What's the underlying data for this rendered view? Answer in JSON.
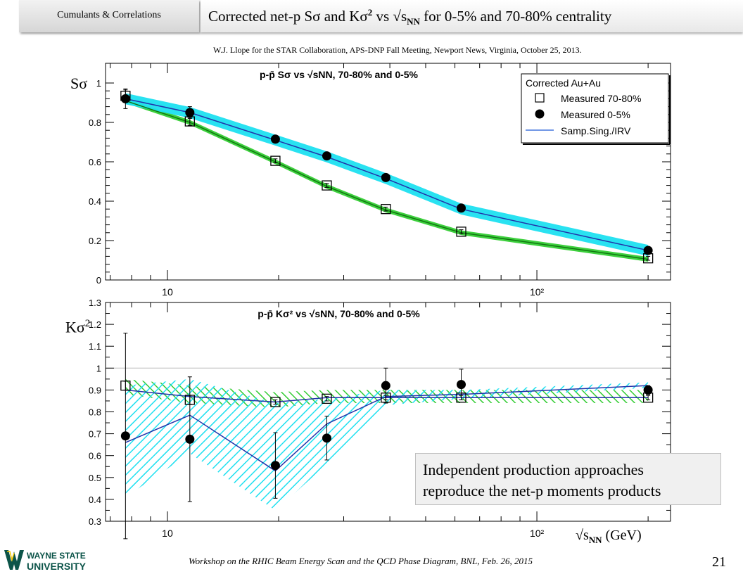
{
  "header": {
    "tab_label": "Cumulants & Correlations",
    "title_main": "Corrected net-p Sσ and Kσ",
    "title_sup": "2",
    "title_mid": " vs √s",
    "title_sub": "NN",
    "title_end": " for 0-5% and 70-80% centrality",
    "credit": "W.J. Llope for the STAR Collaboration, APS-DNP Fall Meeting, Newport News, Virginia, October 25, 2013."
  },
  "labels": {
    "ylabel_top": "Sσ",
    "ylabel_bottom": "Kσ",
    "ylabel_bottom_sup": "2",
    "xlabel_pre": "√s",
    "xlabel_sub": "NN",
    "xlabel_post": " (GeV)"
  },
  "note": {
    "line1": "Independent production approaches",
    "line2": "reproduce the net-p moments products"
  },
  "footer": {
    "text": "Workshop on the RHIC Beam Energy Scan and the QCD Phase Diagram, BNL, Feb. 26, 2015",
    "page": "21"
  },
  "logo": {
    "line1": "WAYNE STATE",
    "line2": "UNIVERSITY"
  },
  "colors": {
    "cyan_band": "#1ee0f0",
    "green_band": "#33cc33",
    "line_blue": "#2233aa",
    "line_green": "#117711"
  },
  "chart_data": [
    {
      "type": "scatter",
      "title": "p-p̄ Sσ vs √sNN, 70-80% and 0-5%",
      "xscale": "log",
      "xlim": [
        6.8,
        230
      ],
      "ylim": [
        0,
        1.1
      ],
      "yticks": [
        0,
        0.2,
        0.4,
        0.6,
        0.8,
        1
      ],
      "ytick_labels": [
        "0",
        "0.2",
        "0.4",
        "0.6",
        "0.8",
        "1"
      ],
      "xtick_labels": [
        "10",
        "10²"
      ],
      "legend": {
        "position": "top-right",
        "title": "Corrected Au+Au",
        "entries": [
          "Measured 70-80%",
          "Measured 0-5%",
          "Samp.Sing./IRV"
        ]
      },
      "x": [
        7.7,
        11.5,
        19.6,
        27,
        39,
        62.4,
        200
      ],
      "series": [
        {
          "name": "Measured 70-80%",
          "marker": "open-square",
          "values": [
            0.935,
            0.805,
            0.605,
            0.48,
            0.36,
            0.245,
            0.11
          ],
          "errors": [
            0.03,
            0.02,
            0.01,
            0.01,
            0.01,
            0.01,
            0.01
          ]
        },
        {
          "name": "Measured 0-5%",
          "marker": "filled-circle",
          "values": [
            0.92,
            0.85,
            0.715,
            0.63,
            0.52,
            0.365,
            0.15
          ],
          "errors": [
            0.05,
            0.03,
            0.01,
            0.01,
            0.01,
            0.01,
            0.01
          ]
        },
        {
          "name": "Samp.Sing./IRV",
          "marker": "line",
          "band": "green",
          "values": [
            0.91,
            0.8,
            0.6,
            0.475,
            0.355,
            0.24,
            0.105
          ],
          "band_halfwidth": 0.012
        },
        {
          "name": "Samp.Sing./IRV",
          "marker": "line",
          "band": "cyan",
          "values": [
            0.92,
            0.85,
            0.71,
            0.625,
            0.515,
            0.36,
            0.15
          ],
          "band_halfwidth": 0.028
        }
      ]
    },
    {
      "type": "scatter",
      "title": "p-p̄ Kσ² vs √sNN, 70-80% and 0-5%",
      "xscale": "log",
      "xlim": [
        6.8,
        230
      ],
      "ylim": [
        0.3,
        1.3
      ],
      "yticks": [
        0.3,
        0.4,
        0.5,
        0.6,
        0.7,
        0.8,
        0.9,
        1,
        1.1,
        1.2,
        1.3
      ],
      "ytick_labels": [
        "0.3",
        "0.4",
        "0.5",
        "0.6",
        "0.7",
        "0.8",
        "0.9",
        "1",
        "1.1",
        "1.2",
        "1.3"
      ],
      "xtick_labels": [
        "10",
        "10²"
      ],
      "reference_line": 1.0,
      "x": [
        7.7,
        11.5,
        19.6,
        27,
        39,
        62.4,
        200
      ],
      "series": [
        {
          "name": "Measured 70-80%",
          "marker": "open-square",
          "values": [
            0.92,
            0.855,
            0.845,
            0.86,
            0.865,
            0.865,
            0.865
          ],
          "errors": [
            0.02,
            0.02,
            0.01,
            0.01,
            0.01,
            0.01,
            0.01
          ]
        },
        {
          "name": "Measured 0-5%",
          "marker": "filled-circle",
          "values": [
            0.69,
            0.675,
            0.555,
            0.68,
            0.92,
            0.925,
            0.9
          ],
          "errors": [
            0.47,
            0.285,
            0.15,
            0.1,
            0.08,
            0.07,
            0.02
          ]
        },
        {
          "name": "Samp.Sing./IRV",
          "marker": "line",
          "band": "green",
          "values": [
            0.9,
            0.87,
            0.845,
            0.865,
            0.865,
            0.865,
            0.865
          ],
          "band_lo": [
            0.88,
            0.84,
            0.82,
            0.84,
            0.84,
            0.84,
            0.84
          ],
          "band_hi": [
            0.95,
            0.92,
            0.89,
            0.9,
            0.9,
            0.9,
            0.9
          ]
        },
        {
          "name": "Samp.Sing./IRV",
          "marker": "line",
          "band": "cyan",
          "values": [
            0.66,
            0.785,
            0.53,
            0.745,
            0.87,
            0.88,
            0.92
          ],
          "band_lo": [
            0.41,
            0.61,
            0.35,
            0.56,
            0.83,
            0.86,
            0.91
          ],
          "band_hi": [
            0.92,
            0.95,
            0.84,
            0.86,
            0.9,
            0.9,
            0.935
          ]
        }
      ]
    }
  ]
}
